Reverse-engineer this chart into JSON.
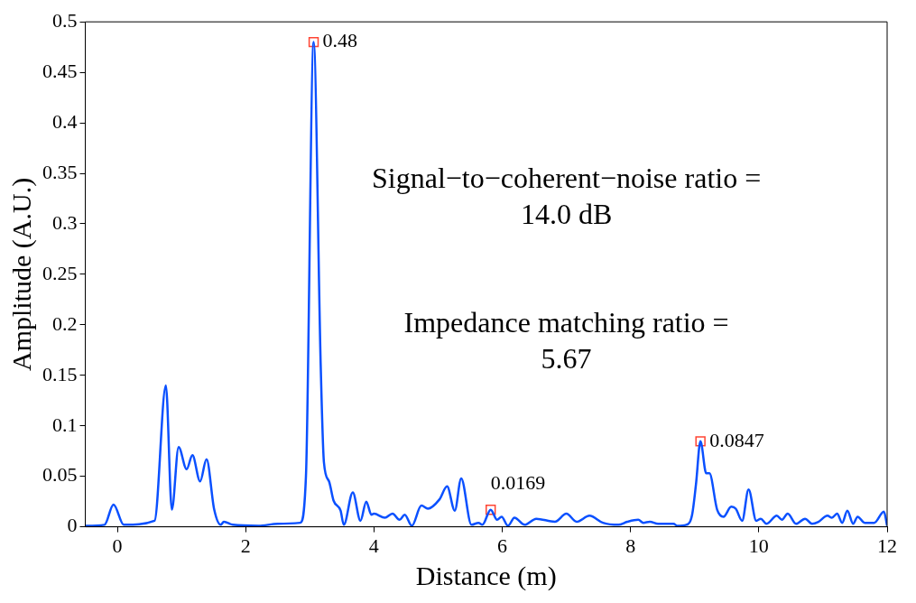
{
  "chart_data": {
    "type": "line",
    "xlabel": "Distance (m)",
    "ylabel": "Amplitude (A.U.)",
    "xlim": [
      -0.5,
      12
    ],
    "xticks": [
      0,
      2,
      4,
      6,
      8,
      10,
      12
    ],
    "ylim": [
      0,
      0.5
    ],
    "yticks": [
      0,
      0.05,
      0.1,
      0.15,
      0.2,
      0.25,
      0.3,
      0.35,
      0.4,
      0.45,
      0.5
    ],
    "grid": false,
    "legend": false,
    "series": [
      {
        "color": "#0a50ff",
        "marker": "none",
        "line_style": "solid",
        "x": [
          -0.5,
          -0.2,
          -0.06,
          0.1,
          0.58,
          0.756,
          0.85,
          0.955,
          1.08,
          1.17,
          1.29,
          1.39,
          1.51,
          1.61,
          1.66,
          1.8,
          2.2,
          2.5,
          2.85,
          2.94,
          3.06,
          3.17,
          3.22,
          3.3,
          3.37,
          3.48,
          3.53,
          3.67,
          3.79,
          3.88,
          3.96,
          4.0,
          4.17,
          4.29,
          4.4,
          4.48,
          4.59,
          4.74,
          4.84,
          5.02,
          5.14,
          5.26,
          5.36,
          5.52,
          5.63,
          5.69,
          5.82,
          5.92,
          5.99,
          6.09,
          6.19,
          6.35,
          6.53,
          6.82,
          7.0,
          7.16,
          7.36,
          7.57,
          7.81,
          7.95,
          8.12,
          8.2,
          8.3,
          8.43,
          8.67,
          8.73,
          8.87,
          8.96,
          9.02,
          9.09,
          9.18,
          9.23,
          9.35,
          9.45,
          9.57,
          9.64,
          9.74,
          9.84,
          9.96,
          10.03,
          10.12,
          10.28,
          10.36,
          10.45,
          10.58,
          10.72,
          10.83,
          10.93,
          11.07,
          11.14,
          11.22,
          11.3,
          11.38,
          11.47,
          11.54,
          11.65,
          11.8,
          11.95,
          12.0
        ],
        "values": [
          0.001,
          0.002,
          0.022,
          0.002,
          0.006,
          0.14,
          0.017,
          0.079,
          0.057,
          0.071,
          0.045,
          0.067,
          0.017,
          0.002,
          0.005,
          0.002,
          0.001,
          0.003,
          0.004,
          0.05,
          0.48,
          0.16,
          0.064,
          0.045,
          0.026,
          0.016,
          0.002,
          0.034,
          0.006,
          0.025,
          0.012,
          0.013,
          0.009,
          0.013,
          0.007,
          0.012,
          0.001,
          0.021,
          0.018,
          0.027,
          0.04,
          0.016,
          0.048,
          0.002,
          0.004,
          0.002,
          0.0169,
          0.007,
          0.01,
          0.001,
          0.009,
          0.002,
          0.008,
          0.005,
          0.013,
          0.005,
          0.011,
          0.004,
          0.002,
          0.005,
          0.007,
          0.004,
          0.005,
          0.003,
          0.003,
          0.001,
          0.002,
          0.012,
          0.042,
          0.0847,
          0.053,
          0.053,
          0.017,
          0.01,
          0.02,
          0.018,
          0.006,
          0.037,
          0.006,
          0.008,
          0.003,
          0.011,
          0.007,
          0.013,
          0.003,
          0.008,
          0.003,
          0.005,
          0.011,
          0.009,
          0.013,
          0.004,
          0.016,
          0.003,
          0.01,
          0.004,
          0.004,
          0.015,
          0.001
        ]
      },
      {
        "type": "scatter",
        "color": "#ff4433",
        "marker": "square",
        "x": [
          3.06,
          5.82,
          9.09
        ],
        "values": [
          0.48,
          0.0169,
          0.0847
        ]
      }
    ],
    "annotations": [
      {
        "text": "0.48",
        "x": 3.06,
        "y": 0.48
      },
      {
        "text": "0.0169",
        "x": 5.82,
        "y": 0.0169
      },
      {
        "text": "0.0847",
        "x": 9.09,
        "y": 0.0847
      },
      "Signal−to−coherent−noise ratio =\n14.0 dB",
      "Impedance matching ratio =\n5.67"
    ]
  }
}
